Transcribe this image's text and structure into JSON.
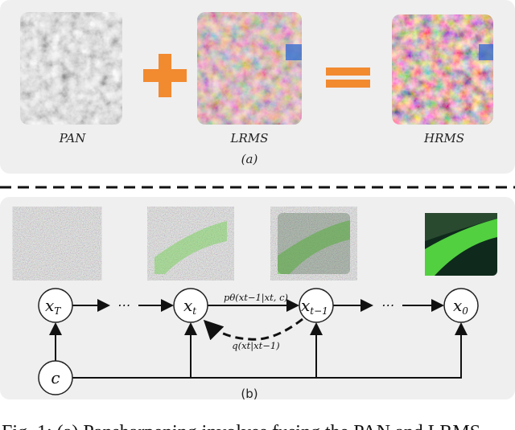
{
  "panel_a": {
    "labels": {
      "pan": "PAN",
      "lrms": "LRMS",
      "hrms": "HRMS"
    },
    "caption": "(a)",
    "plus_color": "#f28a30",
    "equals_color": "#f28a30"
  },
  "panel_b": {
    "nodes": {
      "xT": "x",
      "xT_sub": "T",
      "xt": "x",
      "xt_sub": "t",
      "xt1": "x",
      "xt1_sub": "t−1",
      "x0": "x",
      "x0_sub": "0",
      "c": "c"
    },
    "ellipsis": "⋯",
    "forward_label": "pθ(xt−1|xt, c)",
    "reverse_label": "q(xt|xt−1)",
    "caption": "(b)"
  },
  "figure_caption": "Fig. 1: (a) Pansharpening involves fusing the PAN and LRMS"
}
